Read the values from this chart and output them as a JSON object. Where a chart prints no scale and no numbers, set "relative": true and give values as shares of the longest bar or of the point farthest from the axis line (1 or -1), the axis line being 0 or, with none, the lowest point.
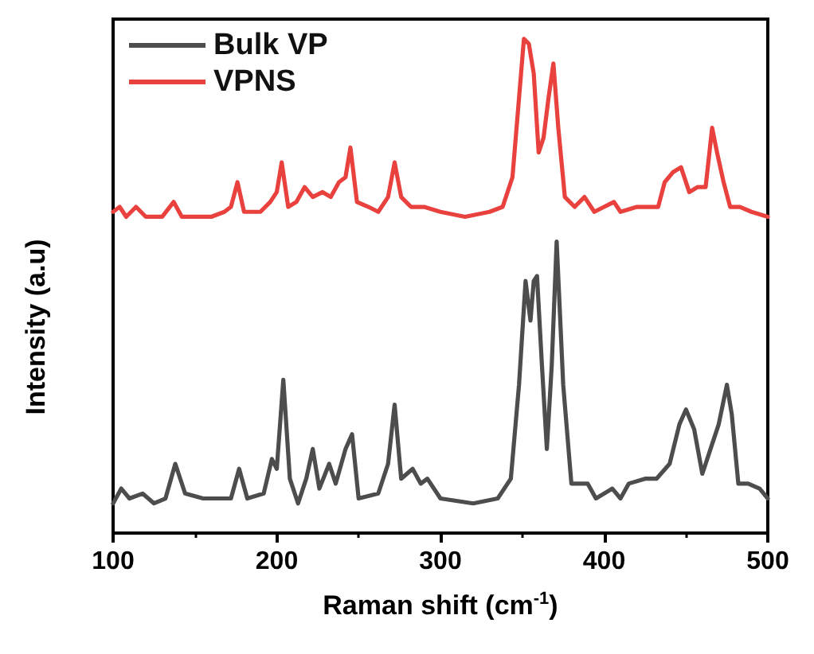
{
  "chart_data": {
    "type": "line",
    "relative": true,
    "xlabel": "Raman shift (cm$^{-1}$)",
    "ylabel": "Intensity (a.u)",
    "xlim": [
      100,
      500
    ],
    "xticks": [
      100,
      200,
      300,
      400,
      500
    ],
    "legend": "top left",
    "grid": false,
    "marker": "none",
    "line_style": "solid",
    "series": [
      {
        "name": "Bulk VP",
        "color": "#4d4d4d",
        "x": [
          100,
          105,
          110,
          118,
          125,
          132,
          138,
          144,
          155,
          165,
          172,
          177,
          182,
          192,
          197,
          200,
          204,
          208,
          213,
          218,
          222,
          226,
          232,
          236,
          242,
          246,
          250,
          262,
          268,
          272,
          276,
          283,
          288,
          292,
          300,
          320,
          335,
          343,
          348,
          352,
          355,
          357,
          359,
          362,
          365,
          368,
          371,
          375,
          380,
          390,
          395,
          405,
          410,
          415,
          425,
          432,
          440,
          446,
          450,
          455,
          460,
          465,
          470,
          475,
          478,
          482,
          488,
          495,
          500
        ],
        "values": [
          0.06,
          0.09,
          0.07,
          0.08,
          0.06,
          0.07,
          0.14,
          0.08,
          0.07,
          0.07,
          0.07,
          0.13,
          0.07,
          0.08,
          0.15,
          0.13,
          0.31,
          0.11,
          0.06,
          0.11,
          0.17,
          0.09,
          0.14,
          0.1,
          0.17,
          0.2,
          0.07,
          0.08,
          0.14,
          0.26,
          0.11,
          0.13,
          0.1,
          0.11,
          0.07,
          0.06,
          0.07,
          0.11,
          0.3,
          0.51,
          0.43,
          0.51,
          0.52,
          0.34,
          0.17,
          0.34,
          0.59,
          0.3,
          0.1,
          0.1,
          0.07,
          0.09,
          0.07,
          0.1,
          0.11,
          0.11,
          0.14,
          0.22,
          0.25,
          0.21,
          0.12,
          0.17,
          0.22,
          0.3,
          0.24,
          0.1,
          0.1,
          0.09,
          0.07
        ]
      },
      {
        "name": "VPNS",
        "color": "#e8413e",
        "x": [
          100,
          104,
          108,
          114,
          120,
          130,
          137,
          142,
          150,
          160,
          168,
          172,
          176,
          180,
          190,
          196,
          200,
          203,
          207,
          212,
          217,
          222,
          228,
          233,
          238,
          242,
          245,
          249,
          256,
          262,
          268,
          272,
          276,
          282,
          290,
          300,
          315,
          330,
          338,
          344,
          348,
          351,
          354,
          357,
          360,
          363,
          366,
          369,
          372,
          376,
          382,
          388,
          394,
          400,
          406,
          410,
          420,
          428,
          433,
          437,
          442,
          447,
          452,
          457,
          462,
          466,
          469,
          473,
          477,
          483,
          490,
          500
        ],
        "values": [
          0.65,
          0.66,
          0.64,
          0.66,
          0.64,
          0.64,
          0.67,
          0.64,
          0.64,
          0.64,
          0.65,
          0.66,
          0.71,
          0.65,
          0.65,
          0.67,
          0.69,
          0.75,
          0.66,
          0.67,
          0.7,
          0.68,
          0.69,
          0.68,
          0.71,
          0.72,
          0.78,
          0.67,
          0.66,
          0.65,
          0.68,
          0.75,
          0.68,
          0.66,
          0.66,
          0.65,
          0.64,
          0.65,
          0.66,
          0.72,
          0.88,
          1,
          0.99,
          0.93,
          0.77,
          0.8,
          0.88,
          0.95,
          0.82,
          0.68,
          0.66,
          0.68,
          0.65,
          0.66,
          0.67,
          0.65,
          0.66,
          0.66,
          0.66,
          0.71,
          0.73,
          0.74,
          0.69,
          0.7,
          0.7,
          0.82,
          0.77,
          0.71,
          0.66,
          0.66,
          0.65,
          0.64
        ]
      }
    ]
  }
}
